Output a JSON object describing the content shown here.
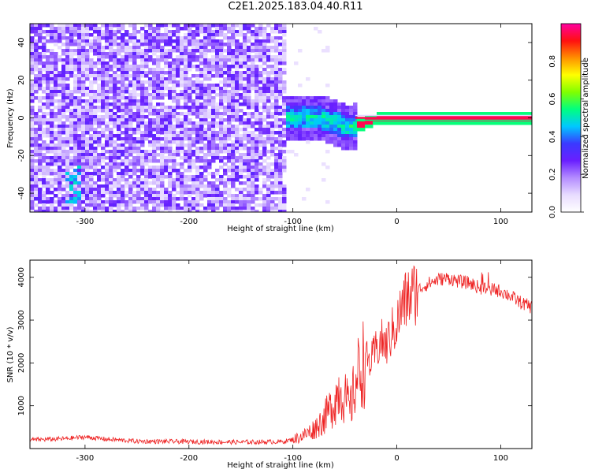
{
  "title": "C2E1.2025.183.04.40.R11",
  "colors": {
    "snr_line": "#ee2222",
    "background": "#ffffff",
    "axis": "#000000",
    "colormap": [
      "#ffffff",
      "#e8dcff",
      "#b48cff",
      "#6a1fff",
      "#3a3aff",
      "#00c8ff",
      "#00ff80",
      "#80ff00",
      "#ffff00",
      "#ff9000",
      "#ff1010",
      "#ff00a0"
    ]
  },
  "chart_data": [
    {
      "type": "heatmap",
      "xlabel": "Height of straight line (km)",
      "ylabel": "Frequency (Hz)",
      "xlim": [
        -353,
        130
      ],
      "ylim": [
        -50,
        50
      ],
      "xticks": [
        -300,
        -200,
        -100,
        0,
        100
      ],
      "yticks": [
        -40,
        -20,
        0,
        20,
        40
      ],
      "grid": false,
      "description_values": {
        "noise_region_x": [
          -353,
          -105
        ],
        "carrier_frequency_hz": 0,
        "carrier_x_range": [
          -110,
          130
        ],
        "carrier_dip_hz": -5,
        "carrier_dip_x": -45
      },
      "colorbar": {
        "label": "Normalized spectral amplitude",
        "range": [
          0,
          1
        ],
        "ticks": [
          0.0,
          0.2,
          0.4,
          0.6,
          0.8
        ]
      }
    },
    {
      "type": "line",
      "xlabel": "Height of straight line (km)",
      "ylabel": "SNR (10 * v/v)",
      "xlim": [
        -353,
        130
      ],
      "ylim": [
        0,
        4400
      ],
      "xticks": [
        -300,
        -200,
        -100,
        0,
        100
      ],
      "yticks": [
        1000,
        2000,
        3000,
        4000
      ],
      "grid": false,
      "series": [
        {
          "x": [
            -353,
            -320,
            -300,
            -280,
            -250,
            -200,
            -150,
            -110,
            -100,
            -90,
            -80,
            -70,
            -60,
            -55,
            -50,
            -45,
            -40,
            -35,
            -30,
            -25,
            -20,
            -15,
            -10,
            -5,
            0,
            5,
            10,
            15,
            20,
            30,
            40,
            50,
            60,
            70,
            80,
            90,
            100,
            110,
            120,
            130
          ],
          "y": [
            200,
            230,
            270,
            220,
            170,
            160,
            150,
            160,
            210,
            300,
            450,
            700,
            1100,
            1400,
            1200,
            900,
            1500,
            1900,
            2100,
            2000,
            2300,
            2500,
            2400,
            2700,
            2900,
            3300,
            3500,
            3600,
            3700,
            3850,
            3950,
            3980,
            3900,
            3870,
            3750,
            3720,
            3680,
            3550,
            3400,
            3300
          ]
        }
      ]
    }
  ]
}
